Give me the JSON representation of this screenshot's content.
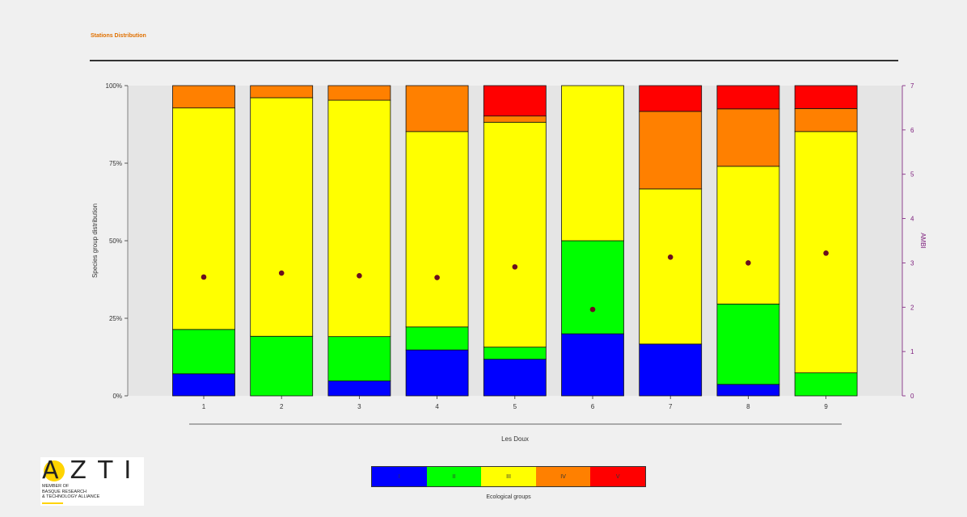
{
  "header": {
    "title": "Stations Distribution"
  },
  "logo": {
    "mark": "AZTI",
    "text": "MEMBER OF\nBASQUE RESEARCH\n& TECHNOLOGY ALLIANCE"
  },
  "legend": {
    "title": "Ecological groups",
    "items": [
      {
        "label": "I",
        "color": "#0000ff"
      },
      {
        "label": "II",
        "color": "#00ff00"
      },
      {
        "label": "III",
        "color": "#ffff00"
      },
      {
        "label": "IV",
        "color": "#ff8000"
      },
      {
        "label": "V",
        "color": "#ff0000"
      }
    ]
  },
  "chart_data": {
    "type": "bar",
    "stacked": true,
    "xlabel": "Les Doux",
    "ylabel": "Species group distribution",
    "y2label": "AMBI",
    "categories": [
      "1",
      "2",
      "3",
      "4",
      "5",
      "6",
      "7",
      "8",
      "9"
    ],
    "ylim": [
      0,
      100
    ],
    "y2lim": [
      0,
      7
    ],
    "yticks": [
      "0%",
      "25%",
      "50%",
      "75%",
      "100%"
    ],
    "y2ticks": [
      "0",
      "1",
      "2",
      "3",
      "4",
      "5",
      "6",
      "7"
    ],
    "series": [
      {
        "name": "I",
        "color": "#0000ff",
        "values": [
          7.1,
          0,
          4.8,
          14.8,
          11.8,
          20.0,
          16.7,
          3.7,
          0
        ]
      },
      {
        "name": "II",
        "color": "#00ff00",
        "values": [
          14.3,
          19.2,
          14.3,
          7.4,
          3.9,
          30.0,
          0,
          25.9,
          7.4
        ]
      },
      {
        "name": "III",
        "color": "#ffff00",
        "values": [
          71.4,
          76.9,
          76.2,
          63.0,
          72.5,
          50.0,
          50.0,
          44.4,
          77.8
        ]
      },
      {
        "name": "IV",
        "color": "#ff8000",
        "values": [
          7.2,
          3.9,
          4.7,
          14.8,
          2.0,
          0,
          25.0,
          18.5,
          7.4
        ]
      },
      {
        "name": "V",
        "color": "#ff0000",
        "values": [
          0,
          0,
          0,
          0,
          9.8,
          0,
          8.3,
          7.5,
          7.4
        ]
      }
    ],
    "ambi": [
      2.68,
      2.77,
      2.71,
      2.67,
      2.91,
      1.95,
      3.13,
      3.0,
      3.22
    ],
    "ambi_color": "#6a0f1e"
  }
}
